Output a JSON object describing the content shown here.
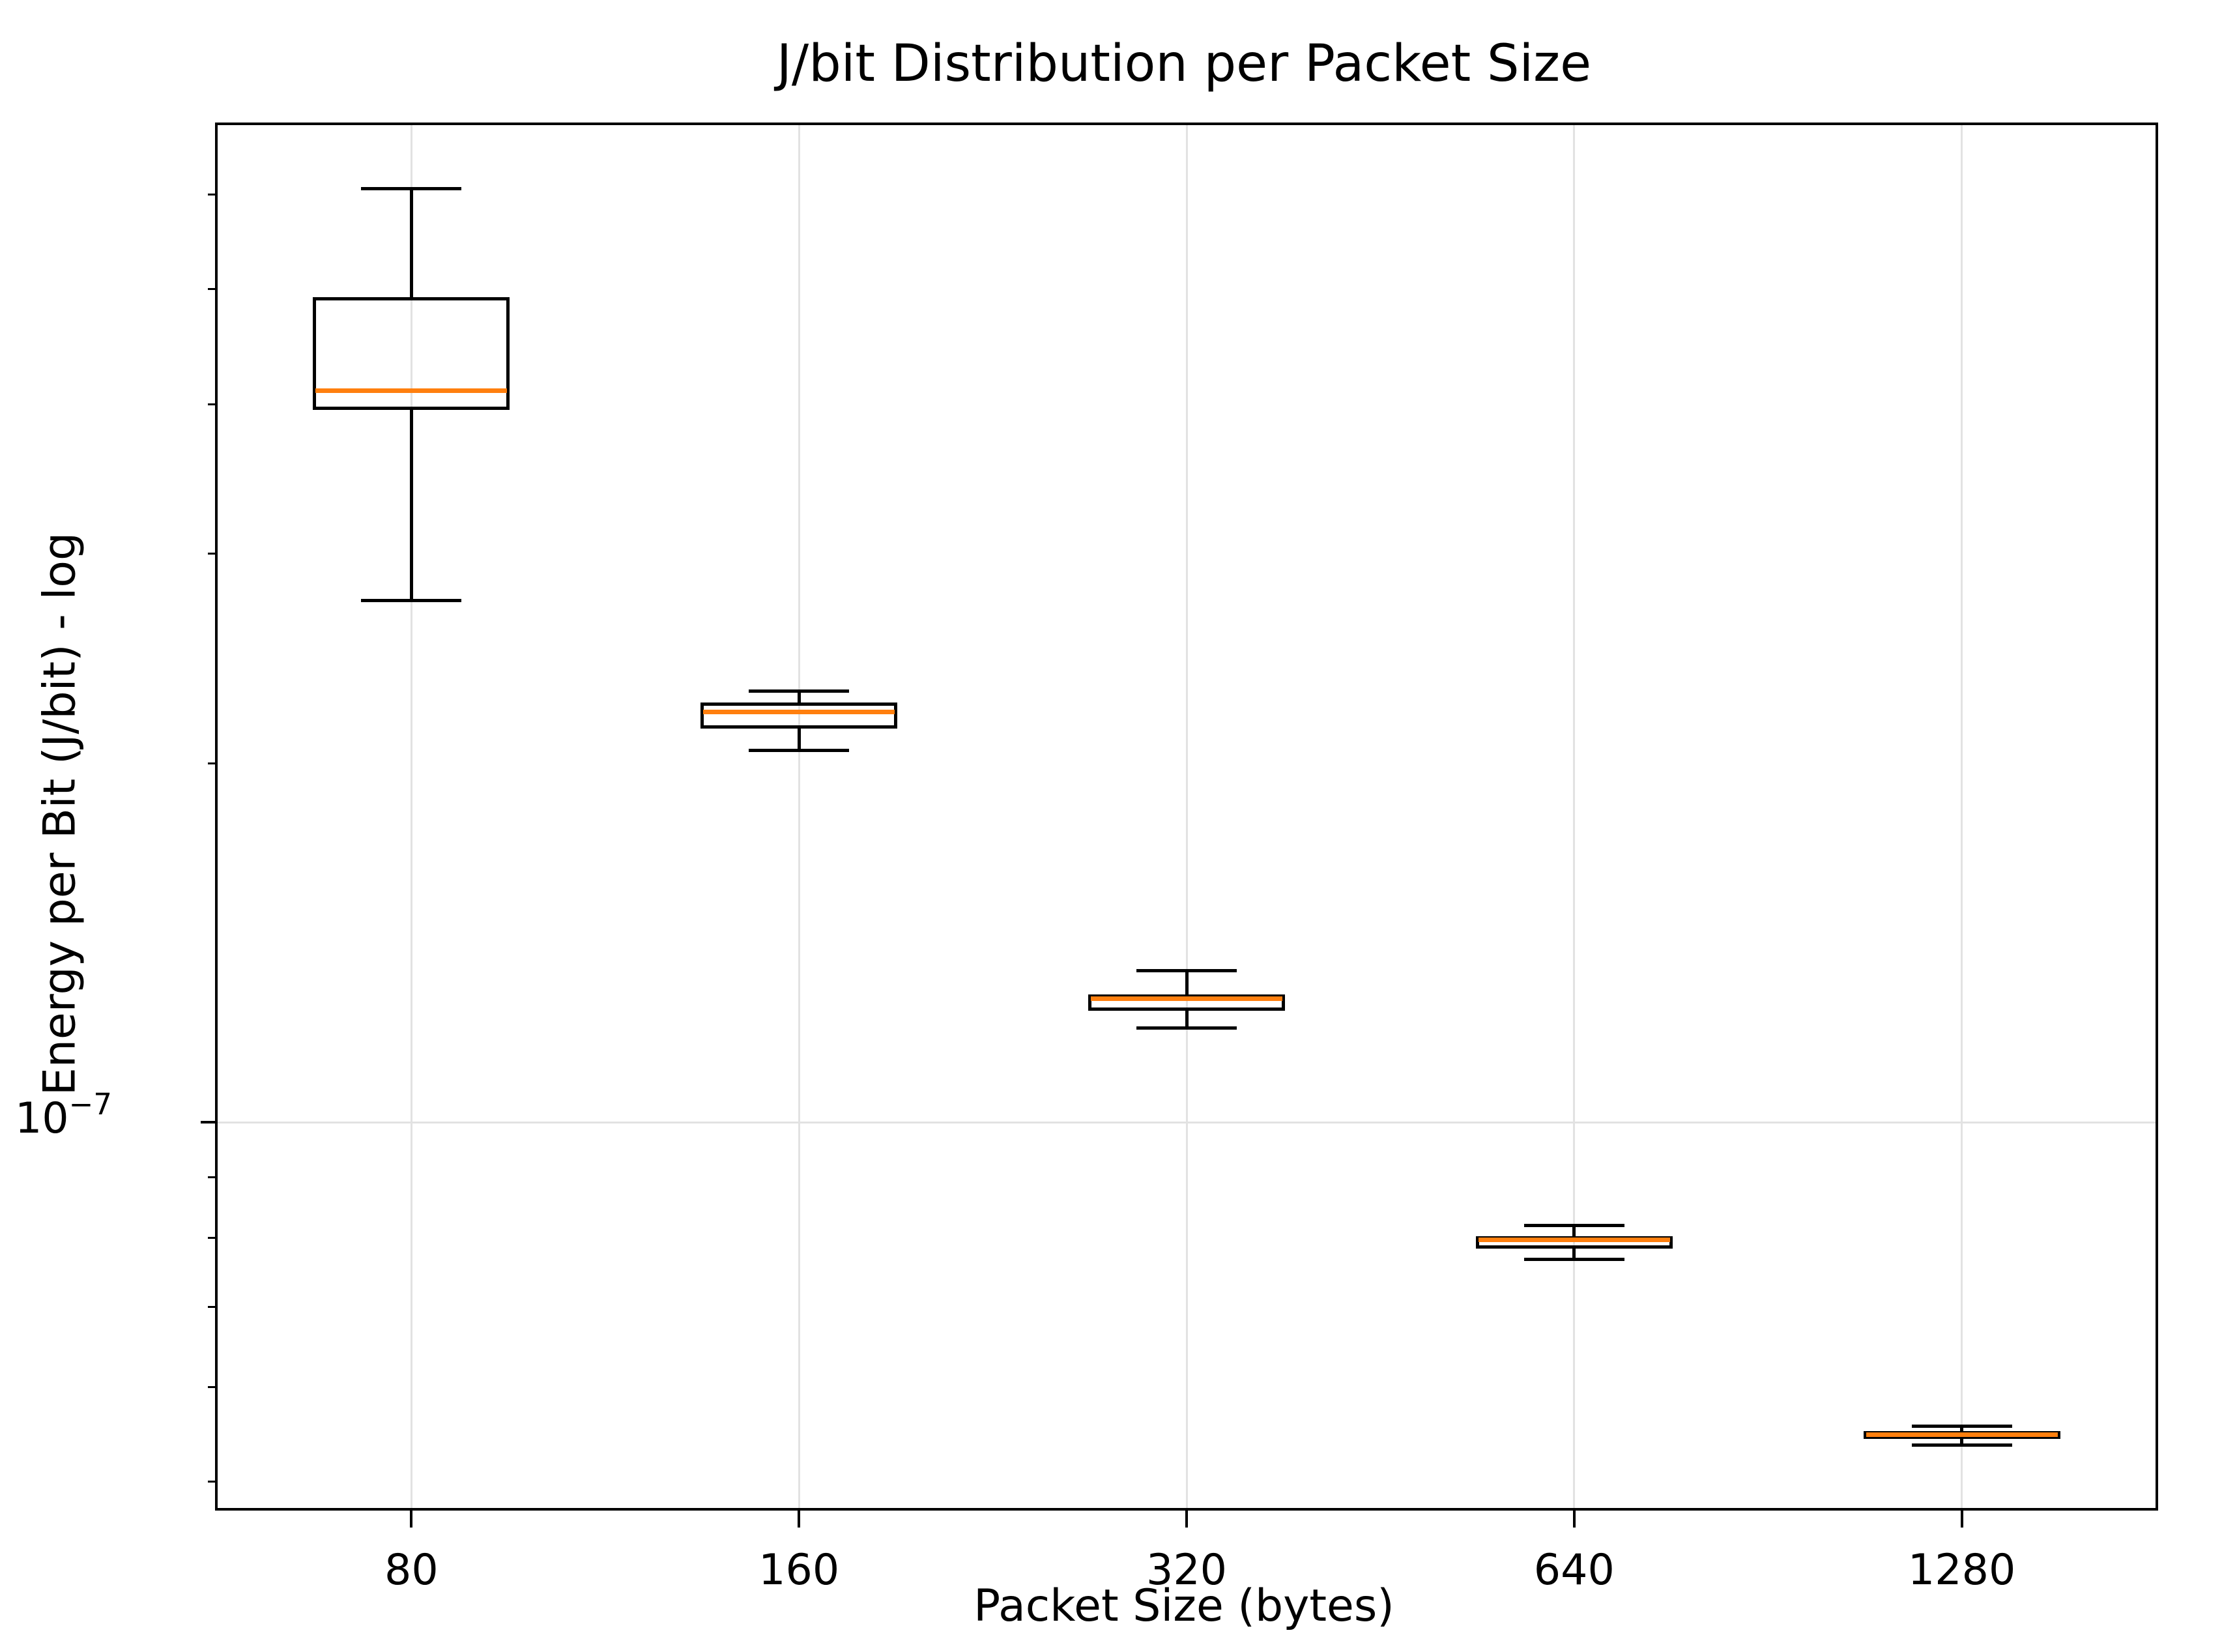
{
  "figure": {
    "title": "J/bit Distribution per Packet Size",
    "x_label": "Packet Size (bytes)",
    "y_label": "Energy per Bit (J/bit) - log"
  },
  "chart_data": {
    "type": "box",
    "title": "J/bit Distribution per Packet Size",
    "xlabel": "Packet Size (bytes)",
    "ylabel": "Energy per Bit (J/bit) - log",
    "y_scale": "log",
    "ylim": [
      4.75e-08,
      6.86e-07
    ],
    "grid": {
      "x_major": true,
      "y_major": true,
      "legend": "none"
    },
    "categories": [
      "80",
      "160",
      "320",
      "640",
      "1280"
    ],
    "y_major_tick": {
      "base": "10",
      "exponent": "−7",
      "value": 1e-07
    },
    "y_minor_tick_values": [
      6e-07,
      5e-07,
      4e-07,
      3e-07,
      2e-07,
      9e-08,
      8e-08,
      7e-08,
      6e-08,
      5e-08
    ],
    "series": [
      {
        "category": "80",
        "whisker_low": 2.74e-07,
        "q1": 3.96e-07,
        "median": 4.11e-07,
        "q3": 4.92e-07,
        "whisker_high": 6.07e-07
      },
      {
        "category": "160",
        "whisker_low": 2.05e-07,
        "q1": 2.14e-07,
        "median": 2.21e-07,
        "q3": 2.25e-07,
        "whisker_high": 2.3e-07
      },
      {
        "category": "320",
        "whisker_low": 1.2e-07,
        "q1": 1.24e-07,
        "median": 1.27e-07,
        "q3": 1.28e-07,
        "whisker_high": 1.34e-07
      },
      {
        "category": "640",
        "whisker_low": 7.68e-08,
        "q1": 7.84e-08,
        "median": 7.97e-08,
        "q3": 8.03e-08,
        "whisker_high": 8.2e-08
      },
      {
        "category": "1280",
        "whisker_low": 5.36e-08,
        "q1": 5.43e-08,
        "median": 5.47e-08,
        "q3": 5.51e-08,
        "whisker_high": 5.56e-08
      }
    ],
    "colors": {
      "box_edge": "#000000",
      "median": "#ff7f0e",
      "whisker": "#000000",
      "grid": "#e2e2e2",
      "background": "#ffffff",
      "text": "#000000"
    }
  }
}
